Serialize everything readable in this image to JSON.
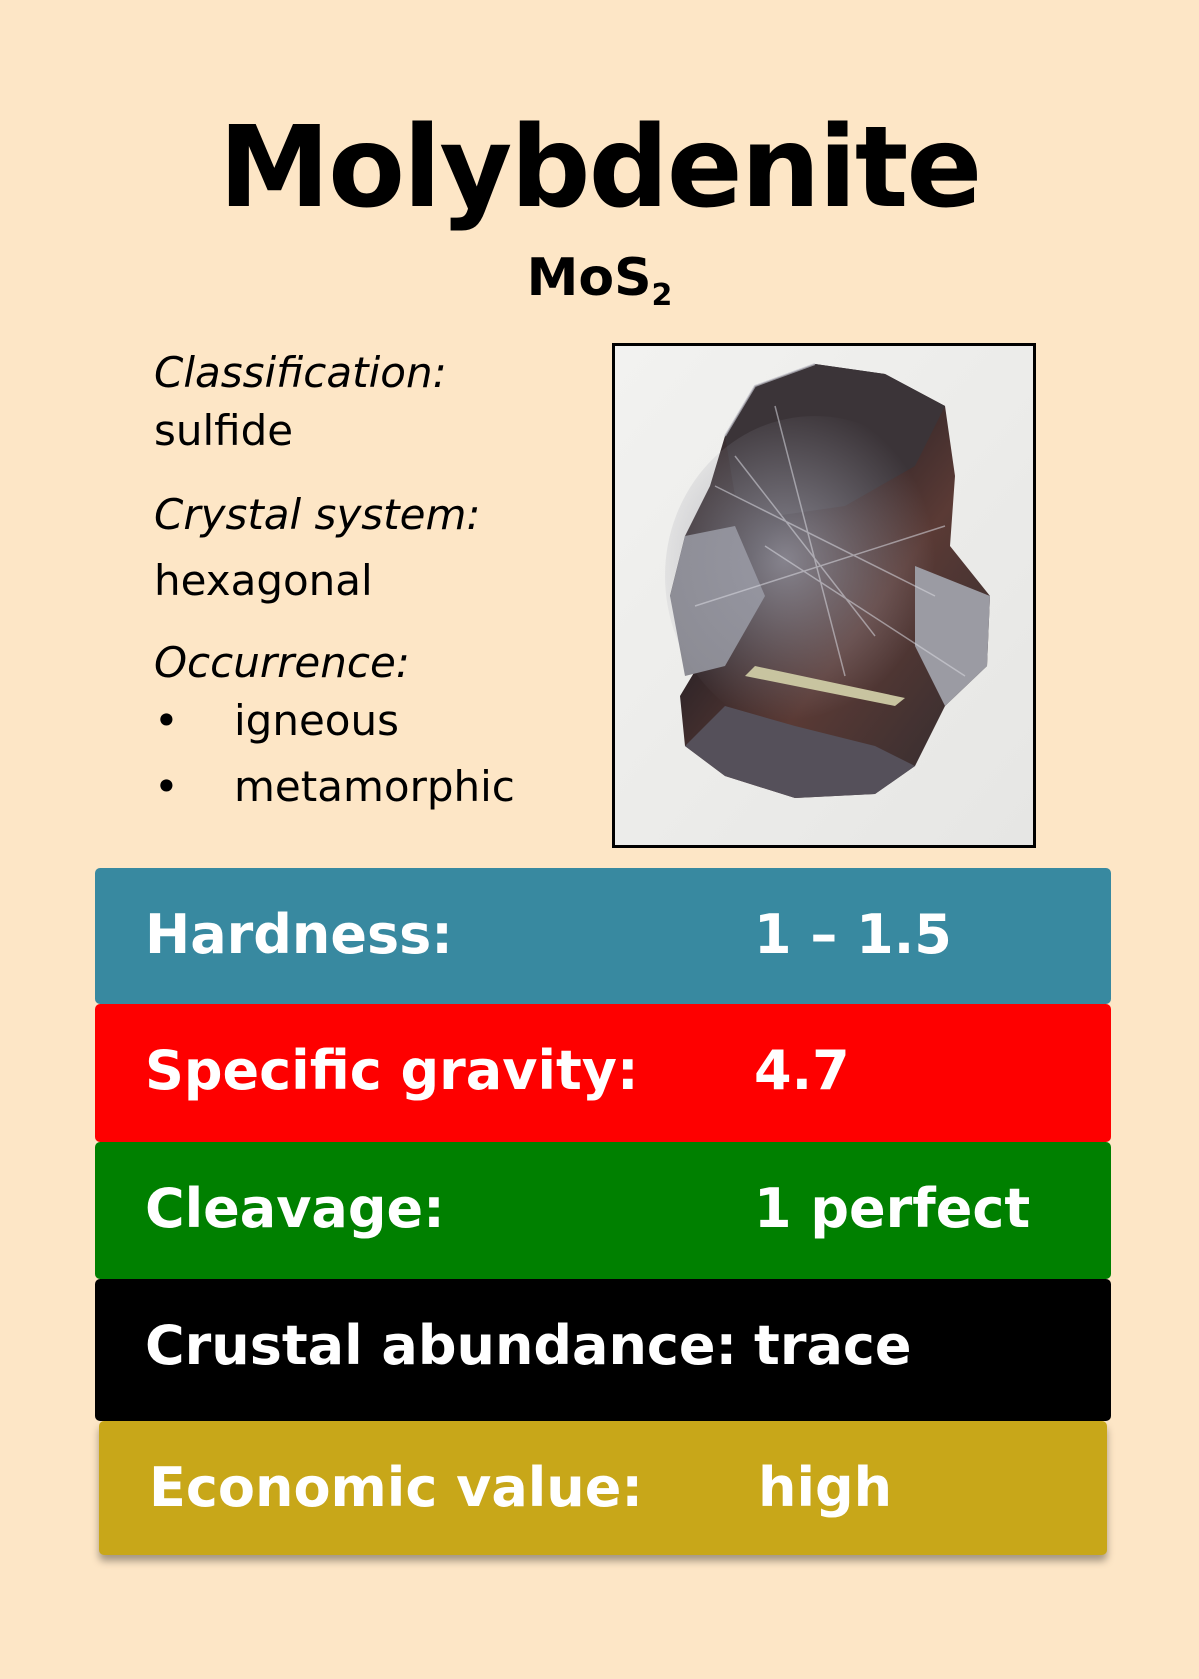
{
  "card": {
    "title": "Molybdenite",
    "formula_main": "MoS",
    "formula_sub": "2"
  },
  "properties": {
    "classification_label": "Classification:",
    "classification_value": "sulfide",
    "crystal_label": "Crystal system:",
    "crystal_value": "hexagonal",
    "occurrence_label": "Occurrence:",
    "occurrence_items": [
      "igneous",
      "metamorphic"
    ],
    "bullet_glyph": "•"
  },
  "stats": [
    {
      "label": "Hardness:",
      "value": "1 – 1.5",
      "color": "#3889a0"
    },
    {
      "label": "Specific gravity:",
      "value": "4.7",
      "color": "#fe0000"
    },
    {
      "label": "Cleavage:",
      "value": "1 perfect",
      "color": "#008000"
    },
    {
      "label": "Crustal abundance:",
      "value": "trace",
      "color": "#000000"
    },
    {
      "label": "Economic value:",
      "value": "high",
      "color": "#c8a719"
    }
  ],
  "colors": {
    "background": "#fde6c6"
  }
}
